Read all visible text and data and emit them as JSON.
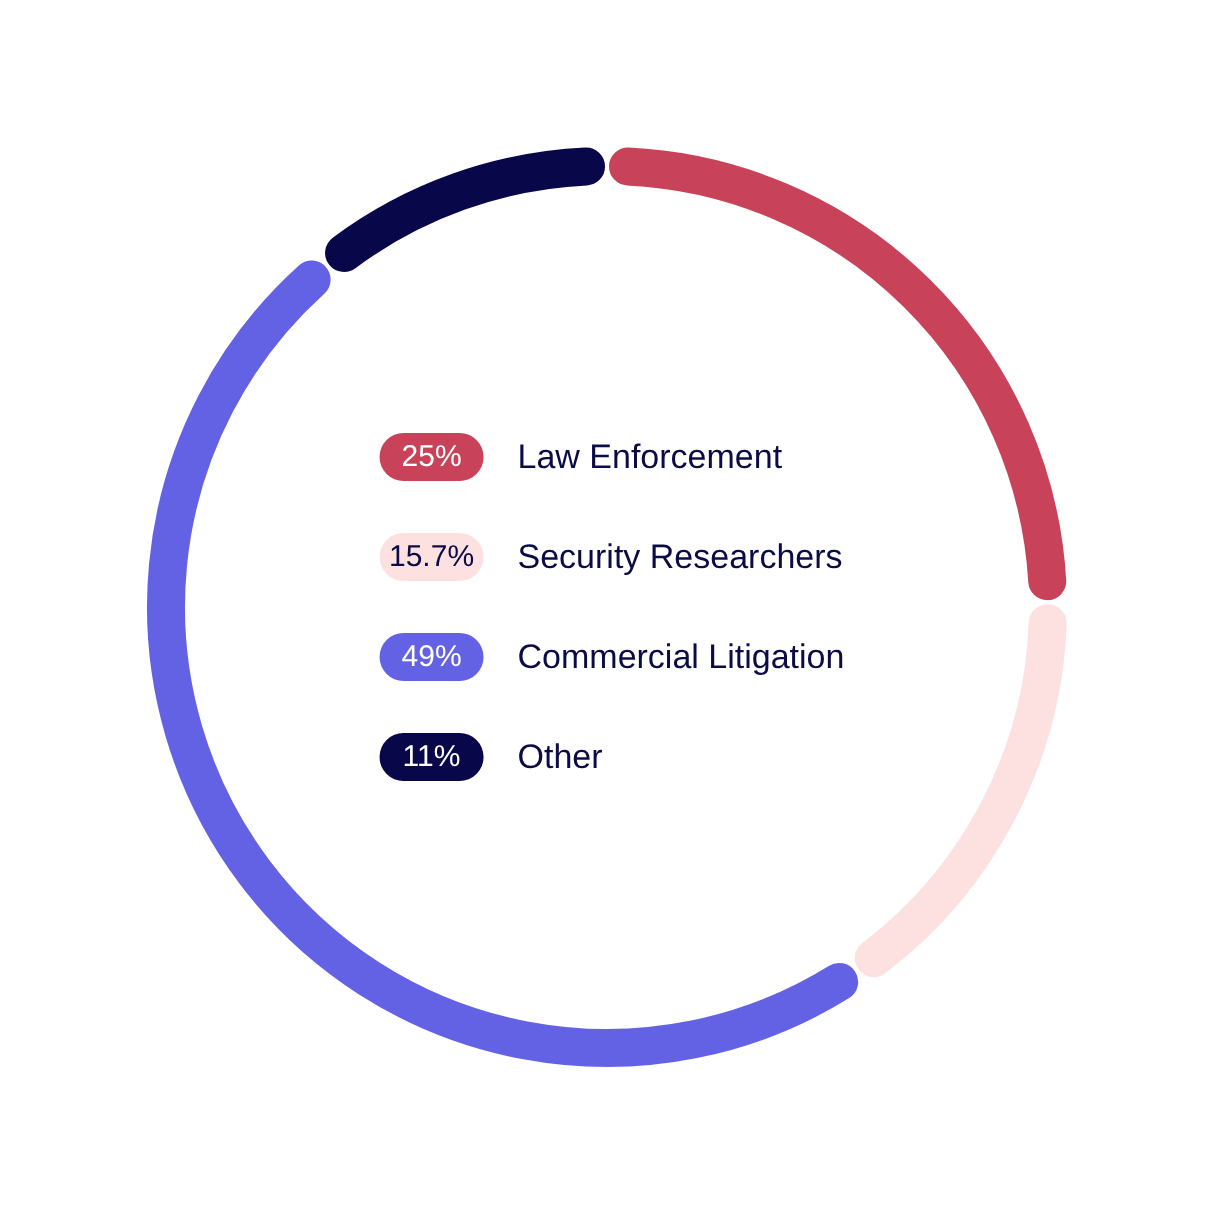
{
  "chart_data": {
    "type": "donut",
    "categories": [
      "Law Enforcement",
      "Security Researchers",
      "Commercial Litigation",
      "Other"
    ],
    "values": [
      25,
      15.7,
      49,
      11
    ],
    "value_labels": [
      "25%",
      "15.7%",
      "49%",
      "11%"
    ],
    "colors": [
      "#c8435a",
      "#fde1e1",
      "#6462e4",
      "#07074a"
    ],
    "legend": "center"
  }
}
